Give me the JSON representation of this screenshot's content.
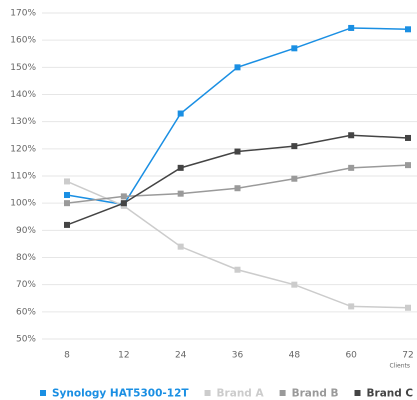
{
  "chart_data": {
    "type": "line",
    "x_label": "Clients",
    "categories": [
      "8",
      "12",
      "24",
      "36",
      "48",
      "60",
      "72"
    ],
    "series": [
      {
        "name": "Synology HAT5300-12T",
        "color": "#1a8fe3",
        "values": [
          103,
          99.5,
          133,
          150,
          157,
          164.5,
          164
        ]
      },
      {
        "name": "Brand A",
        "color": "#cccccc",
        "values": [
          108,
          99,
          84,
          75.5,
          70,
          62,
          61.5
        ]
      },
      {
        "name": "Brand B",
        "color": "#9a9a9a",
        "values": [
          100,
          102.5,
          103.5,
          105.5,
          109,
          113,
          114
        ]
      },
      {
        "name": "Brand C",
        "color": "#444444",
        "values": [
          92,
          100,
          113,
          119,
          121,
          125,
          124
        ]
      }
    ],
    "ylim": [
      50,
      170
    ],
    "yticks": [
      {
        "value": 50,
        "label": "50%"
      },
      {
        "value": 60,
        "label": "60%"
      },
      {
        "value": 70,
        "label": "70%"
      },
      {
        "value": 80,
        "label": "80%"
      },
      {
        "value": 90,
        "label": "90%"
      },
      {
        "value": 100,
        "label": "100%"
      },
      {
        "value": 110,
        "label": "110%"
      },
      {
        "value": 120,
        "label": "120%"
      },
      {
        "value": 130,
        "label": "130%"
      },
      {
        "value": 140,
        "label": "140%"
      },
      {
        "value": 150,
        "label": "150%"
      },
      {
        "value": 160,
        "label": "160%"
      },
      {
        "value": 170,
        "label": "170%"
      }
    ],
    "grid": true
  }
}
